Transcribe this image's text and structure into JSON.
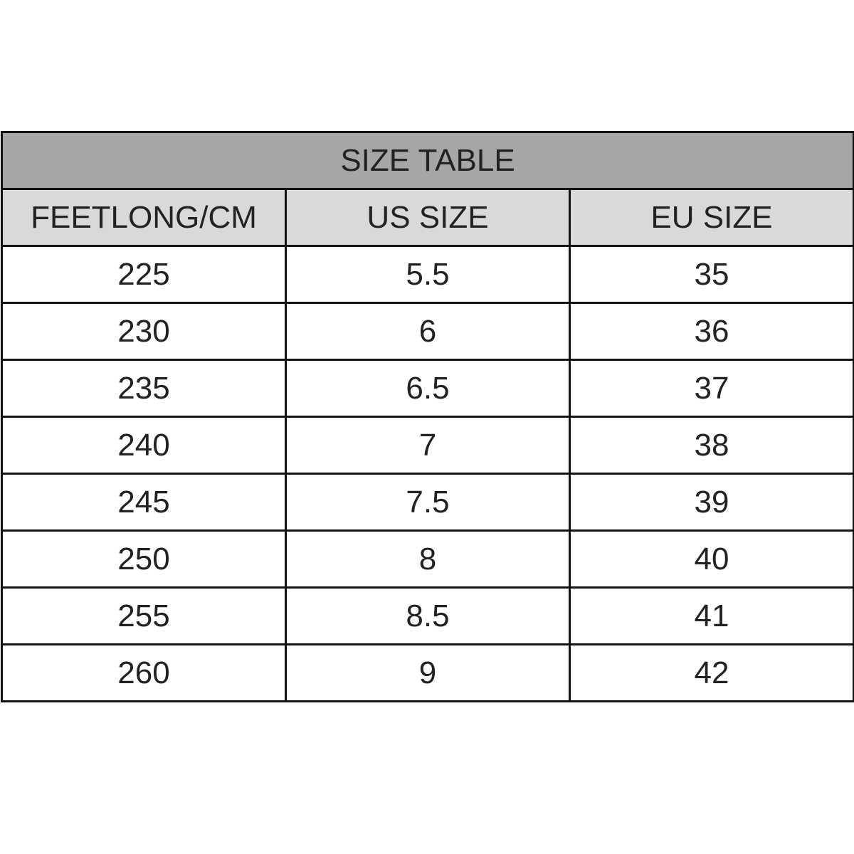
{
  "title": "SIZE TABLE",
  "colors": {
    "title_bg": "#a6a6a6",
    "header_bg": "#d9d9d9",
    "border": "#111111"
  },
  "columns": [
    "FEETLONG/CM",
    "US SIZE",
    "EU SIZE"
  ],
  "rows": [
    [
      "225",
      "5.5",
      "35"
    ],
    [
      "230",
      "6",
      "36"
    ],
    [
      "235",
      "6.5",
      "37"
    ],
    [
      "240",
      "7",
      "38"
    ],
    [
      "245",
      "7.5",
      "39"
    ],
    [
      "250",
      "8",
      "40"
    ],
    [
      "255",
      "8.5",
      "41"
    ],
    [
      "260",
      "9",
      "42"
    ]
  ]
}
